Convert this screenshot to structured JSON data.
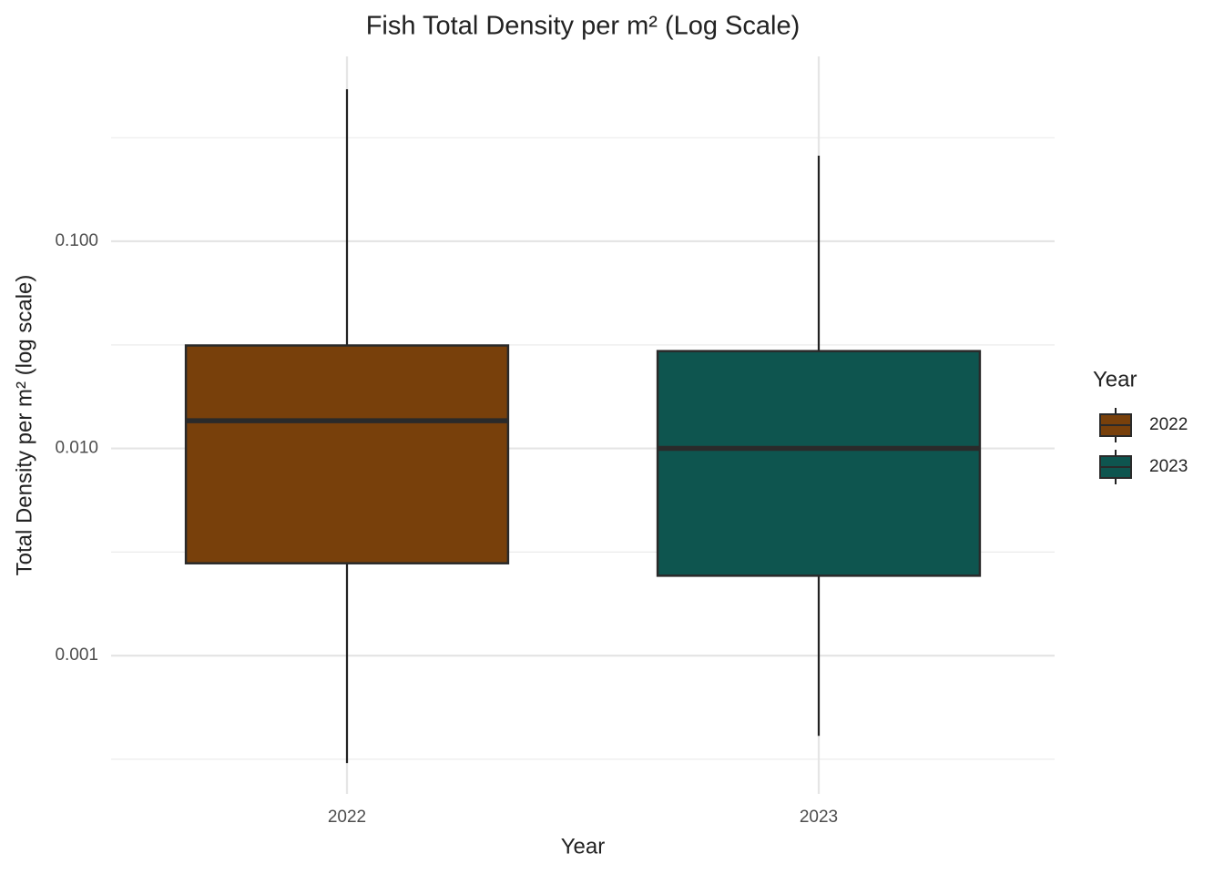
{
  "chart_data": {
    "type": "box",
    "title": "Fish Total Density per m² (Log Scale)",
    "x_label": "Year",
    "y_label": "Total Density per m² (log scale)",
    "legend_title": "Year",
    "legend_position": "right",
    "log_y": true,
    "grid": true,
    "categories": [
      "2022",
      "2023"
    ],
    "series": [
      {
        "name": "2022",
        "color": "#78400b",
        "min": 0.000303,
        "q1": 0.00279,
        "median": 0.0136,
        "q3": 0.0314,
        "max": 0.542
      },
      {
        "name": "2023",
        "color": "#0e554f",
        "min": 0.00041,
        "q1": 0.00243,
        "median": 0.01,
        "q3": 0.0295,
        "max": 0.259
      }
    ],
    "ylim": [
      0.000215,
      0.78
    ],
    "yticks": [
      {
        "value": 0.001,
        "label": "0.001"
      },
      {
        "value": 0.01,
        "label": "0.010"
      },
      {
        "value": 0.1,
        "label": "0.100"
      }
    ],
    "minor_gridlines": [
      0.000316,
      0.00316,
      0.0316,
      0.316
    ]
  }
}
